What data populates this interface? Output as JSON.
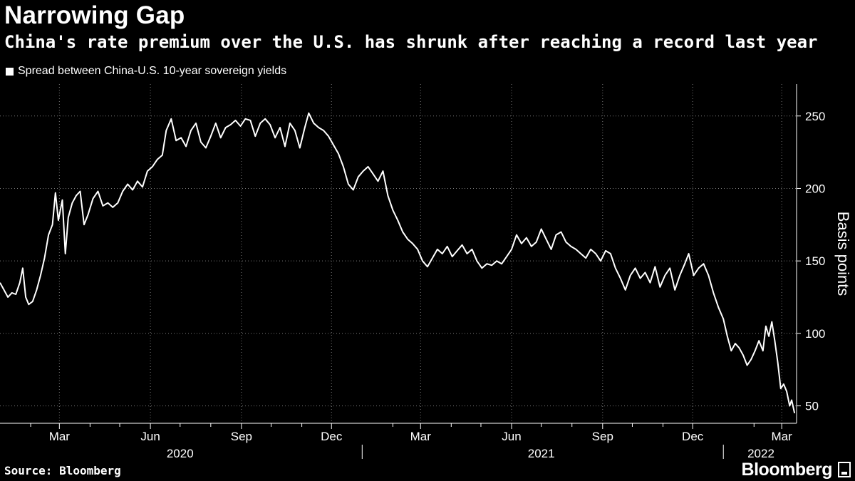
{
  "header": {
    "title": "Narrowing Gap",
    "subtitle": "China's rate premium over the U.S. has shrunk after reaching a record last year"
  },
  "footer": {
    "source": "Source: Bloomberg",
    "logo": "Bloomberg"
  },
  "colors": {
    "background": "#000000",
    "line": "#ffffff",
    "grid": "#7a7a7a"
  },
  "chart_data": {
    "type": "line",
    "title": "Narrowing Gap",
    "subtitle": "China's rate premium over the U.S. has shrunk after reaching a record last year",
    "ylabel": "Basis points",
    "ylim": [
      38,
      272
    ],
    "y_ticks": [
      50,
      100,
      150,
      200,
      250
    ],
    "xlim": [
      "2020-01-01",
      "2022-03-16"
    ],
    "x_ticks": [
      {
        "date": "2020-03-01",
        "label": "Mar"
      },
      {
        "date": "2020-06-01",
        "label": "Jun"
      },
      {
        "date": "2020-09-01",
        "label": "Sep"
      },
      {
        "date": "2020-12-01",
        "label": "Dec"
      },
      {
        "date": "2021-03-01",
        "label": "Mar"
      },
      {
        "date": "2021-06-01",
        "label": "Jun"
      },
      {
        "date": "2021-09-01",
        "label": "Sep"
      },
      {
        "date": "2021-12-01",
        "label": "Dec"
      },
      {
        "date": "2022-03-01",
        "label": "Mar"
      }
    ],
    "x_minor_ticks": [
      "2020-02-01",
      "2020-04-01",
      "2020-05-01",
      "2020-07-01",
      "2020-08-01",
      "2020-10-01",
      "2020-11-01",
      "2021-02-01",
      "2021-04-01",
      "2021-05-01",
      "2021-07-01",
      "2021-08-01",
      "2021-10-01",
      "2021-11-01",
      "2022-02-01"
    ],
    "year_labels": [
      {
        "label": "2020",
        "date": "2020-07-01"
      },
      {
        "label": "2021",
        "date": "2021-07-01"
      },
      {
        "label": "2022",
        "date": "2022-02-08"
      }
    ],
    "year_separators": [
      "2021-01-01",
      "2022-01-01"
    ],
    "grid": true,
    "legend": {
      "position": "top-left"
    },
    "series": [
      {
        "name": "Spread between China-U.S. 10-year sovereign yields",
        "points": [
          [
            "2020-01-01",
            135
          ],
          [
            "2020-01-05",
            130
          ],
          [
            "2020-01-09",
            125
          ],
          [
            "2020-01-13",
            128
          ],
          [
            "2020-01-17",
            127
          ],
          [
            "2020-01-21",
            135
          ],
          [
            "2020-01-24",
            145
          ],
          [
            "2020-01-27",
            125
          ],
          [
            "2020-01-30",
            120
          ],
          [
            "2020-02-03",
            122
          ],
          [
            "2020-02-07",
            130
          ],
          [
            "2020-02-11",
            140
          ],
          [
            "2020-02-15",
            152
          ],
          [
            "2020-02-19",
            168
          ],
          [
            "2020-02-23",
            175
          ],
          [
            "2020-02-26",
            197
          ],
          [
            "2020-02-29",
            178
          ],
          [
            "2020-03-04",
            192
          ],
          [
            "2020-03-07",
            155
          ],
          [
            "2020-03-10",
            180
          ],
          [
            "2020-03-14",
            190
          ],
          [
            "2020-03-18",
            195
          ],
          [
            "2020-03-22",
            198
          ],
          [
            "2020-03-26",
            175
          ],
          [
            "2020-03-30",
            182
          ],
          [
            "2020-04-04",
            193
          ],
          [
            "2020-04-09",
            198
          ],
          [
            "2020-04-14",
            188
          ],
          [
            "2020-04-19",
            190
          ],
          [
            "2020-04-24",
            187
          ],
          [
            "2020-04-29",
            190
          ],
          [
            "2020-05-04",
            198
          ],
          [
            "2020-05-09",
            203
          ],
          [
            "2020-05-14",
            199
          ],
          [
            "2020-05-19",
            205
          ],
          [
            "2020-05-24",
            201
          ],
          [
            "2020-05-29",
            212
          ],
          [
            "2020-06-03",
            215
          ],
          [
            "2020-06-08",
            220
          ],
          [
            "2020-06-13",
            223
          ],
          [
            "2020-06-17",
            240
          ],
          [
            "2020-06-22",
            248
          ],
          [
            "2020-06-27",
            233
          ],
          [
            "2020-07-02",
            235
          ],
          [
            "2020-07-07",
            229
          ],
          [
            "2020-07-12",
            240
          ],
          [
            "2020-07-17",
            245
          ],
          [
            "2020-07-22",
            232
          ],
          [
            "2020-07-27",
            228
          ],
          [
            "2020-08-01",
            236
          ],
          [
            "2020-08-06",
            245
          ],
          [
            "2020-08-11",
            235
          ],
          [
            "2020-08-16",
            242
          ],
          [
            "2020-08-21",
            244
          ],
          [
            "2020-08-26",
            247
          ],
          [
            "2020-08-31",
            243
          ],
          [
            "2020-09-05",
            248
          ],
          [
            "2020-09-10",
            247
          ],
          [
            "2020-09-15",
            236
          ],
          [
            "2020-09-20",
            245
          ],
          [
            "2020-09-25",
            248
          ],
          [
            "2020-09-30",
            244
          ],
          [
            "2020-10-05",
            235
          ],
          [
            "2020-10-10",
            242
          ],
          [
            "2020-10-15",
            229
          ],
          [
            "2020-10-20",
            245
          ],
          [
            "2020-10-25",
            240
          ],
          [
            "2020-10-30",
            228
          ],
          [
            "2020-11-04",
            242
          ],
          [
            "2020-11-08",
            252
          ],
          [
            "2020-11-13",
            245
          ],
          [
            "2020-11-18",
            242
          ],
          [
            "2020-11-23",
            240
          ],
          [
            "2020-11-28",
            236
          ],
          [
            "2020-12-03",
            230
          ],
          [
            "2020-12-08",
            224
          ],
          [
            "2020-12-13",
            215
          ],
          [
            "2020-12-18",
            203
          ],
          [
            "2020-12-23",
            199
          ],
          [
            "2020-12-28",
            208
          ],
          [
            "2021-01-02",
            212
          ],
          [
            "2021-01-07",
            215
          ],
          [
            "2021-01-12",
            210
          ],
          [
            "2021-01-17",
            205
          ],
          [
            "2021-01-22",
            212
          ],
          [
            "2021-01-27",
            195
          ],
          [
            "2021-02-01",
            185
          ],
          [
            "2021-02-06",
            178
          ],
          [
            "2021-02-11",
            170
          ],
          [
            "2021-02-16",
            165
          ],
          [
            "2021-02-21",
            162
          ],
          [
            "2021-02-26",
            158
          ],
          [
            "2021-03-03",
            150
          ],
          [
            "2021-03-08",
            146
          ],
          [
            "2021-03-13",
            152
          ],
          [
            "2021-03-18",
            158
          ],
          [
            "2021-03-23",
            155
          ],
          [
            "2021-03-28",
            160
          ],
          [
            "2021-04-02",
            153
          ],
          [
            "2021-04-07",
            157
          ],
          [
            "2021-04-12",
            161
          ],
          [
            "2021-04-17",
            155
          ],
          [
            "2021-04-22",
            158
          ],
          [
            "2021-04-27",
            150
          ],
          [
            "2021-05-02",
            145
          ],
          [
            "2021-05-07",
            148
          ],
          [
            "2021-05-12",
            147
          ],
          [
            "2021-05-17",
            150
          ],
          [
            "2021-05-22",
            148
          ],
          [
            "2021-05-27",
            153
          ],
          [
            "2021-06-01",
            158
          ],
          [
            "2021-06-06",
            168
          ],
          [
            "2021-06-11",
            162
          ],
          [
            "2021-06-16",
            166
          ],
          [
            "2021-06-21",
            160
          ],
          [
            "2021-06-26",
            163
          ],
          [
            "2021-07-01",
            172
          ],
          [
            "2021-07-06",
            165
          ],
          [
            "2021-07-11",
            158
          ],
          [
            "2021-07-16",
            168
          ],
          [
            "2021-07-21",
            170
          ],
          [
            "2021-07-26",
            163
          ],
          [
            "2021-07-31",
            160
          ],
          [
            "2021-08-05",
            158
          ],
          [
            "2021-08-10",
            155
          ],
          [
            "2021-08-15",
            152
          ],
          [
            "2021-08-20",
            158
          ],
          [
            "2021-08-25",
            155
          ],
          [
            "2021-08-30",
            150
          ],
          [
            "2021-09-04",
            157
          ],
          [
            "2021-09-09",
            155
          ],
          [
            "2021-09-14",
            145
          ],
          [
            "2021-09-19",
            138
          ],
          [
            "2021-09-24",
            130
          ],
          [
            "2021-09-29",
            140
          ],
          [
            "2021-10-04",
            145
          ],
          [
            "2021-10-09",
            138
          ],
          [
            "2021-10-14",
            142
          ],
          [
            "2021-10-19",
            135
          ],
          [
            "2021-10-24",
            146
          ],
          [
            "2021-10-29",
            132
          ],
          [
            "2021-11-03",
            140
          ],
          [
            "2021-11-08",
            145
          ],
          [
            "2021-11-13",
            130
          ],
          [
            "2021-11-18",
            140
          ],
          [
            "2021-11-23",
            148
          ],
          [
            "2021-11-27",
            155
          ],
          [
            "2021-12-02",
            140
          ],
          [
            "2021-12-07",
            145
          ],
          [
            "2021-12-12",
            148
          ],
          [
            "2021-12-17",
            140
          ],
          [
            "2021-12-22",
            128
          ],
          [
            "2021-12-27",
            118
          ],
          [
            "2022-01-01",
            110
          ],
          [
            "2022-01-05",
            98
          ],
          [
            "2022-01-09",
            88
          ],
          [
            "2022-01-13",
            93
          ],
          [
            "2022-01-17",
            90
          ],
          [
            "2022-01-21",
            85
          ],
          [
            "2022-01-25",
            78
          ],
          [
            "2022-01-29",
            82
          ],
          [
            "2022-02-02",
            88
          ],
          [
            "2022-02-06",
            95
          ],
          [
            "2022-02-10",
            88
          ],
          [
            "2022-02-13",
            105
          ],
          [
            "2022-02-16",
            98
          ],
          [
            "2022-02-19",
            108
          ],
          [
            "2022-02-22",
            95
          ],
          [
            "2022-02-25",
            80
          ],
          [
            "2022-02-28",
            62
          ],
          [
            "2022-03-03",
            65
          ],
          [
            "2022-03-06",
            60
          ],
          [
            "2022-03-09",
            50
          ],
          [
            "2022-03-11",
            54
          ],
          [
            "2022-03-14",
            45
          ]
        ]
      }
    ]
  }
}
